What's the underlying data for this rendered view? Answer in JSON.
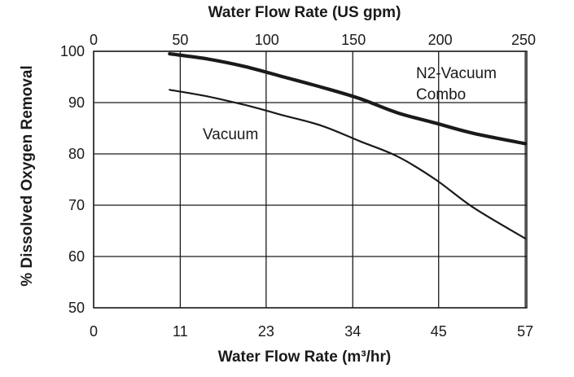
{
  "chart_data": {
    "type": "line",
    "title": "",
    "xlabel": "Water Flow Rate (m³/hr)",
    "x2label": "Water Flow Rate (US gpm)",
    "ylabel": "% Dissolved Oxygen Removal",
    "xlim": [
      0,
      57
    ],
    "ylim": [
      50,
      100
    ],
    "x_ticks": [
      "0",
      "11",
      "23",
      "34",
      "45",
      "57"
    ],
    "x_tick_values": [
      0,
      11.4,
      22.7,
      34.1,
      45.4,
      56.8
    ],
    "x2_ticks": [
      "0",
      "50",
      "100",
      "150",
      "200",
      "250"
    ],
    "x2_tick_values": [
      0,
      50,
      100,
      150,
      200,
      250
    ],
    "y_ticks": [
      "50",
      "60",
      "70",
      "80",
      "90",
      "100"
    ],
    "y_tick_values": [
      50,
      60,
      70,
      80,
      90,
      100
    ],
    "grid": true,
    "series": [
      {
        "name": "N2-Vacuum Combo",
        "line_color": "#1a1a1a",
        "line_weight": "heavy",
        "x": [
          10.0,
          15.0,
          20.0,
          25.0,
          30.0,
          35.0,
          40.0,
          45.0,
          50.0,
          56.8
        ],
        "y": [
          99.5,
          98.5,
          97.0,
          95.0,
          93.0,
          90.8,
          88.0,
          86.0,
          84.0,
          82.0
        ]
      },
      {
        "name": "Vacuum",
        "line_color": "#1a1a1a",
        "line_weight": "light",
        "x": [
          10.0,
          15.0,
          20.0,
          25.0,
          30.0,
          35.0,
          40.0,
          45.0,
          50.0,
          56.8
        ],
        "y": [
          92.5,
          91.2,
          89.5,
          87.5,
          85.5,
          82.5,
          79.5,
          75.0,
          69.5,
          63.5
        ]
      }
    ]
  }
}
